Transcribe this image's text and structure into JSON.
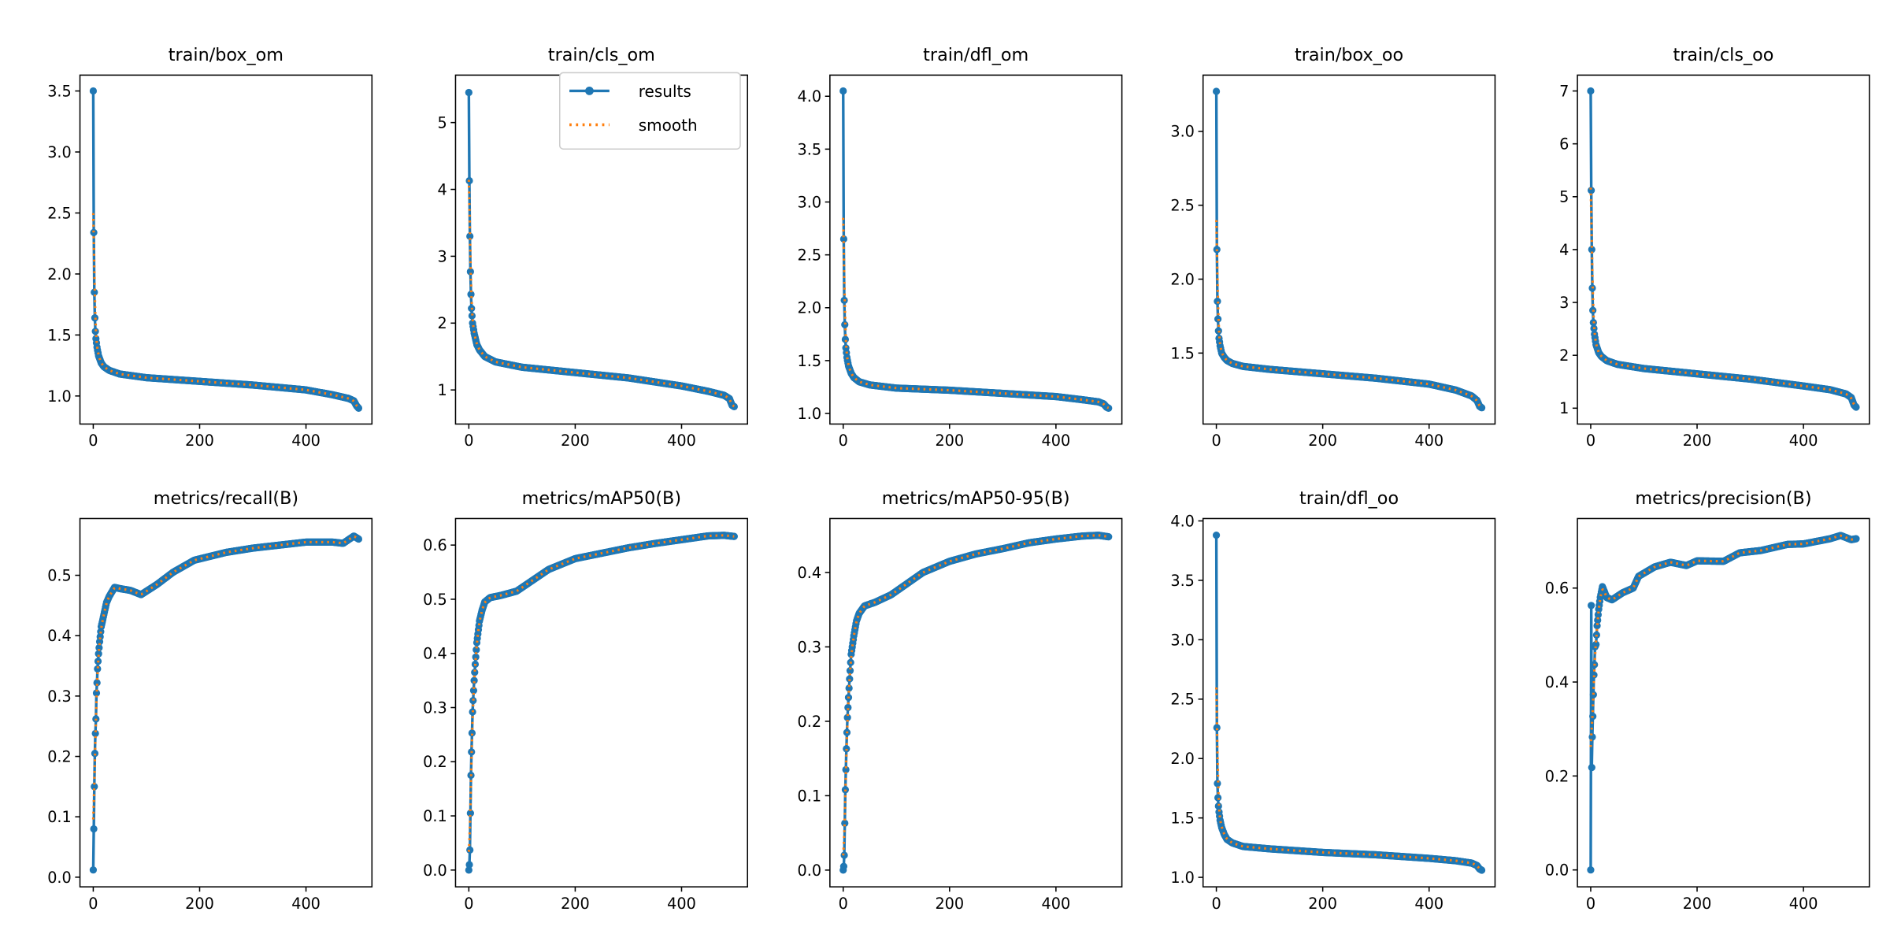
{
  "colors": {
    "results": "#1f77b4",
    "smooth": "#ff7f0e"
  },
  "legend": {
    "placement": "top-right",
    "location": "train/cls_om",
    "items": [
      "results",
      "smooth"
    ]
  },
  "chart_data": [
    {
      "type": "line",
      "title": "train/box_om",
      "xlim": [
        -25,
        524
      ],
      "xticks": [
        0,
        200,
        400
      ],
      "ylim": [
        0.77,
        3.63
      ],
      "yticks": [
        "1.0",
        "1.5",
        "2.0",
        "2.5",
        "3.0",
        "3.5"
      ],
      "points": [
        [
          0,
          3.5
        ],
        [
          1,
          2.34
        ],
        [
          2,
          1.85
        ],
        [
          3,
          1.64
        ],
        [
          4,
          1.53
        ],
        [
          5,
          1.47
        ],
        [
          7,
          1.4
        ],
        [
          10,
          1.33
        ],
        [
          15,
          1.27
        ],
        [
          20,
          1.24
        ],
        [
          30,
          1.21
        ],
        [
          50,
          1.18
        ],
        [
          100,
          1.15
        ],
        [
          200,
          1.12
        ],
        [
          300,
          1.09
        ],
        [
          400,
          1.05
        ],
        [
          450,
          1.01
        ],
        [
          480,
          0.98
        ],
        [
          490,
          0.96
        ],
        [
          495,
          0.92
        ],
        [
          499,
          0.9
        ]
      ]
    },
    {
      "type": "line",
      "title": "train/cls_om",
      "xlim": [
        -25,
        524
      ],
      "xticks": [
        0,
        200,
        400
      ],
      "ylim": [
        0.49,
        5.71
      ],
      "yticks": [
        "1",
        "2",
        "3",
        "4",
        "5"
      ],
      "points": [
        [
          0,
          5.45
        ],
        [
          1,
          4.13
        ],
        [
          2,
          3.3
        ],
        [
          3,
          2.77
        ],
        [
          4,
          2.43
        ],
        [
          5,
          2.22
        ],
        [
          7,
          2.0
        ],
        [
          10,
          1.85
        ],
        [
          15,
          1.68
        ],
        [
          20,
          1.6
        ],
        [
          30,
          1.5
        ],
        [
          50,
          1.42
        ],
        [
          100,
          1.34
        ],
        [
          200,
          1.26
        ],
        [
          300,
          1.18
        ],
        [
          400,
          1.06
        ],
        [
          450,
          0.98
        ],
        [
          480,
          0.92
        ],
        [
          490,
          0.87
        ],
        [
          495,
          0.77
        ],
        [
          499,
          0.75
        ]
      ]
    },
    {
      "type": "line",
      "title": "train/dfl_om",
      "xlim": [
        -25,
        524
      ],
      "xticks": [
        0,
        200,
        400
      ],
      "ylim": [
        0.9,
        4.2
      ],
      "yticks": [
        "1.0",
        "1.5",
        "2.0",
        "2.5",
        "3.0",
        "3.5",
        "4.0"
      ],
      "points": [
        [
          0,
          4.05
        ],
        [
          1,
          2.65
        ],
        [
          2,
          2.07
        ],
        [
          3,
          1.84
        ],
        [
          4,
          1.7
        ],
        [
          5,
          1.62
        ],
        [
          7,
          1.53
        ],
        [
          10,
          1.45
        ],
        [
          15,
          1.38
        ],
        [
          20,
          1.34
        ],
        [
          30,
          1.3
        ],
        [
          50,
          1.27
        ],
        [
          100,
          1.24
        ],
        [
          200,
          1.22
        ],
        [
          300,
          1.19
        ],
        [
          400,
          1.16
        ],
        [
          450,
          1.13
        ],
        [
          480,
          1.11
        ],
        [
          490,
          1.09
        ],
        [
          495,
          1.06
        ],
        [
          499,
          1.05
        ]
      ]
    },
    {
      "type": "line",
      "title": "train/box_oo",
      "xlim": [
        -25,
        524
      ],
      "xticks": [
        0,
        200,
        400
      ],
      "ylim": [
        1.02,
        3.38
      ],
      "yticks": [
        "1.5",
        "2.0",
        "2.5",
        "3.0"
      ],
      "points": [
        [
          0,
          3.27
        ],
        [
          1,
          2.2
        ],
        [
          2,
          1.85
        ],
        [
          3,
          1.73
        ],
        [
          4,
          1.65
        ],
        [
          5,
          1.6
        ],
        [
          7,
          1.55
        ],
        [
          10,
          1.5
        ],
        [
          15,
          1.47
        ],
        [
          20,
          1.45
        ],
        [
          30,
          1.43
        ],
        [
          50,
          1.41
        ],
        [
          100,
          1.39
        ],
        [
          200,
          1.36
        ],
        [
          300,
          1.33
        ],
        [
          400,
          1.29
        ],
        [
          450,
          1.25
        ],
        [
          480,
          1.21
        ],
        [
          490,
          1.18
        ],
        [
          495,
          1.14
        ],
        [
          499,
          1.13
        ]
      ]
    },
    {
      "type": "line",
      "title": "train/cls_oo",
      "xlim": [
        -25,
        524
      ],
      "xticks": [
        0,
        200,
        400
      ],
      "ylim": [
        0.7,
        7.3
      ],
      "yticks": [
        "1",
        "2",
        "3",
        "4",
        "5",
        "6",
        "7"
      ],
      "points": [
        [
          0,
          7.0
        ],
        [
          1,
          5.12
        ],
        [
          2,
          4.0
        ],
        [
          3,
          3.27
        ],
        [
          4,
          2.85
        ],
        [
          5,
          2.62
        ],
        [
          7,
          2.4
        ],
        [
          10,
          2.2
        ],
        [
          15,
          2.05
        ],
        [
          20,
          1.98
        ],
        [
          30,
          1.9
        ],
        [
          50,
          1.83
        ],
        [
          100,
          1.75
        ],
        [
          200,
          1.65
        ],
        [
          300,
          1.55
        ],
        [
          400,
          1.42
        ],
        [
          450,
          1.35
        ],
        [
          480,
          1.27
        ],
        [
          490,
          1.2
        ],
        [
          495,
          1.06
        ],
        [
          499,
          1.02
        ]
      ]
    },
    {
      "type": "line",
      "title": "metrics/recall(B)",
      "xlim": [
        -25,
        524
      ],
      "xticks": [
        0,
        200,
        400
      ],
      "ylim": [
        -0.016,
        0.594
      ],
      "yticks": [
        "0.0",
        "0.1",
        "0.2",
        "0.3",
        "0.4",
        "0.5"
      ],
      "points": [
        [
          0,
          0.012
        ],
        [
          1,
          0.08
        ],
        [
          2,
          0.15
        ],
        [
          3,
          0.205
        ],
        [
          4,
          0.238
        ],
        [
          5,
          0.262
        ],
        [
          6,
          0.305
        ],
        [
          7,
          0.322
        ],
        [
          8,
          0.345
        ],
        [
          10,
          0.37
        ],
        [
          12,
          0.39
        ],
        [
          15,
          0.415
        ],
        [
          20,
          0.435
        ],
        [
          25,
          0.455
        ],
        [
          30,
          0.465
        ],
        [
          40,
          0.48
        ],
        [
          50,
          0.478
        ],
        [
          70,
          0.475
        ],
        [
          90,
          0.468
        ],
        [
          120,
          0.485
        ],
        [
          150,
          0.505
        ],
        [
          190,
          0.525
        ],
        [
          250,
          0.538
        ],
        [
          300,
          0.545
        ],
        [
          350,
          0.55
        ],
        [
          400,
          0.555
        ],
        [
          450,
          0.555
        ],
        [
          470,
          0.553
        ],
        [
          490,
          0.565
        ],
        [
          499,
          0.56
        ]
      ]
    },
    {
      "type": "line",
      "title": "metrics/mAP50(B)",
      "xlim": [
        -25,
        524
      ],
      "xticks": [
        0,
        200,
        400
      ],
      "ylim": [
        -0.031,
        0.649
      ],
      "yticks": [
        "0.0",
        "0.1",
        "0.2",
        "0.3",
        "0.4",
        "0.5",
        "0.6"
      ],
      "points": [
        [
          0,
          0.0
        ],
        [
          1,
          0.01
        ],
        [
          2,
          0.037
        ],
        [
          3,
          0.105
        ],
        [
          4,
          0.175
        ],
        [
          5,
          0.218
        ],
        [
          6,
          0.253
        ],
        [
          7,
          0.292
        ],
        [
          8,
          0.313
        ],
        [
          10,
          0.35
        ],
        [
          12,
          0.38
        ],
        [
          15,
          0.42
        ],
        [
          20,
          0.46
        ],
        [
          25,
          0.48
        ],
        [
          30,
          0.495
        ],
        [
          40,
          0.503
        ],
        [
          60,
          0.507
        ],
        [
          90,
          0.515
        ],
        [
          120,
          0.535
        ],
        [
          150,
          0.555
        ],
        [
          200,
          0.575
        ],
        [
          250,
          0.585
        ],
        [
          300,
          0.595
        ],
        [
          350,
          0.603
        ],
        [
          400,
          0.61
        ],
        [
          450,
          0.617
        ],
        [
          480,
          0.618
        ],
        [
          499,
          0.616
        ]
      ]
    },
    {
      "type": "line",
      "title": "metrics/mAP50-95(B)",
      "xlim": [
        -25,
        524
      ],
      "xticks": [
        0,
        200,
        400
      ],
      "ylim": [
        -0.0225,
        0.4725
      ],
      "yticks": [
        "0.0",
        "0.1",
        "0.2",
        "0.3",
        "0.4"
      ],
      "points": [
        [
          0,
          0.0
        ],
        [
          1,
          0.005
        ],
        [
          2,
          0.02
        ],
        [
          3,
          0.063
        ],
        [
          4,
          0.108
        ],
        [
          5,
          0.135
        ],
        [
          6,
          0.163
        ],
        [
          7,
          0.185
        ],
        [
          8,
          0.205
        ],
        [
          10,
          0.232
        ],
        [
          12,
          0.257
        ],
        [
          15,
          0.29
        ],
        [
          20,
          0.315
        ],
        [
          25,
          0.335
        ],
        [
          30,
          0.345
        ],
        [
          40,
          0.355
        ],
        [
          60,
          0.36
        ],
        [
          90,
          0.37
        ],
        [
          120,
          0.385
        ],
        [
          150,
          0.4
        ],
        [
          200,
          0.415
        ],
        [
          250,
          0.425
        ],
        [
          300,
          0.432
        ],
        [
          350,
          0.44
        ],
        [
          400,
          0.445
        ],
        [
          450,
          0.449
        ],
        [
          480,
          0.45
        ],
        [
          499,
          0.448
        ]
      ]
    },
    {
      "type": "line",
      "title": "train/dfl_oo",
      "xlim": [
        -25,
        524
      ],
      "xticks": [
        0,
        200,
        400
      ],
      "ylim": [
        0.92,
        4.02
      ],
      "yticks": [
        "1.0",
        "1.5",
        "2.0",
        "2.5",
        "3.0",
        "3.5",
        "4.0"
      ],
      "points": [
        [
          0,
          3.88
        ],
        [
          1,
          2.26
        ],
        [
          2,
          1.79
        ],
        [
          3,
          1.67
        ],
        [
          4,
          1.6
        ],
        [
          5,
          1.55
        ],
        [
          7,
          1.48
        ],
        [
          10,
          1.42
        ],
        [
          15,
          1.36
        ],
        [
          20,
          1.32
        ],
        [
          30,
          1.29
        ],
        [
          50,
          1.26
        ],
        [
          100,
          1.24
        ],
        [
          200,
          1.21
        ],
        [
          300,
          1.19
        ],
        [
          400,
          1.16
        ],
        [
          450,
          1.14
        ],
        [
          480,
          1.12
        ],
        [
          490,
          1.1
        ],
        [
          495,
          1.07
        ],
        [
          499,
          1.06
        ]
      ]
    },
    {
      "type": "line",
      "title": "metrics/precision(B)",
      "xlim": [
        -25,
        524
      ],
      "xticks": [
        0,
        200,
        400
      ],
      "ylim": [
        -0.036,
        0.748
      ],
      "yticks": [
        "0.0",
        "0.2",
        "0.4",
        "0.6"
      ],
      "points": [
        [
          0,
          0.0
        ],
        [
          1,
          0.563
        ],
        [
          2,
          0.218
        ],
        [
          3,
          0.283
        ],
        [
          4,
          0.327
        ],
        [
          5,
          0.373
        ],
        [
          6,
          0.415
        ],
        [
          7,
          0.437
        ],
        [
          8,
          0.475
        ],
        [
          10,
          0.48
        ],
        [
          12,
          0.52
        ],
        [
          15,
          0.555
        ],
        [
          18,
          0.58
        ],
        [
          22,
          0.603
        ],
        [
          30,
          0.58
        ],
        [
          40,
          0.575
        ],
        [
          60,
          0.59
        ],
        [
          80,
          0.6
        ],
        [
          90,
          0.625
        ],
        [
          120,
          0.645
        ],
        [
          150,
          0.655
        ],
        [
          180,
          0.648
        ],
        [
          200,
          0.658
        ],
        [
          250,
          0.657
        ],
        [
          280,
          0.675
        ],
        [
          320,
          0.68
        ],
        [
          370,
          0.693
        ],
        [
          400,
          0.694
        ],
        [
          450,
          0.705
        ],
        [
          470,
          0.712
        ],
        [
          490,
          0.703
        ],
        [
          499,
          0.705
        ]
      ]
    }
  ]
}
